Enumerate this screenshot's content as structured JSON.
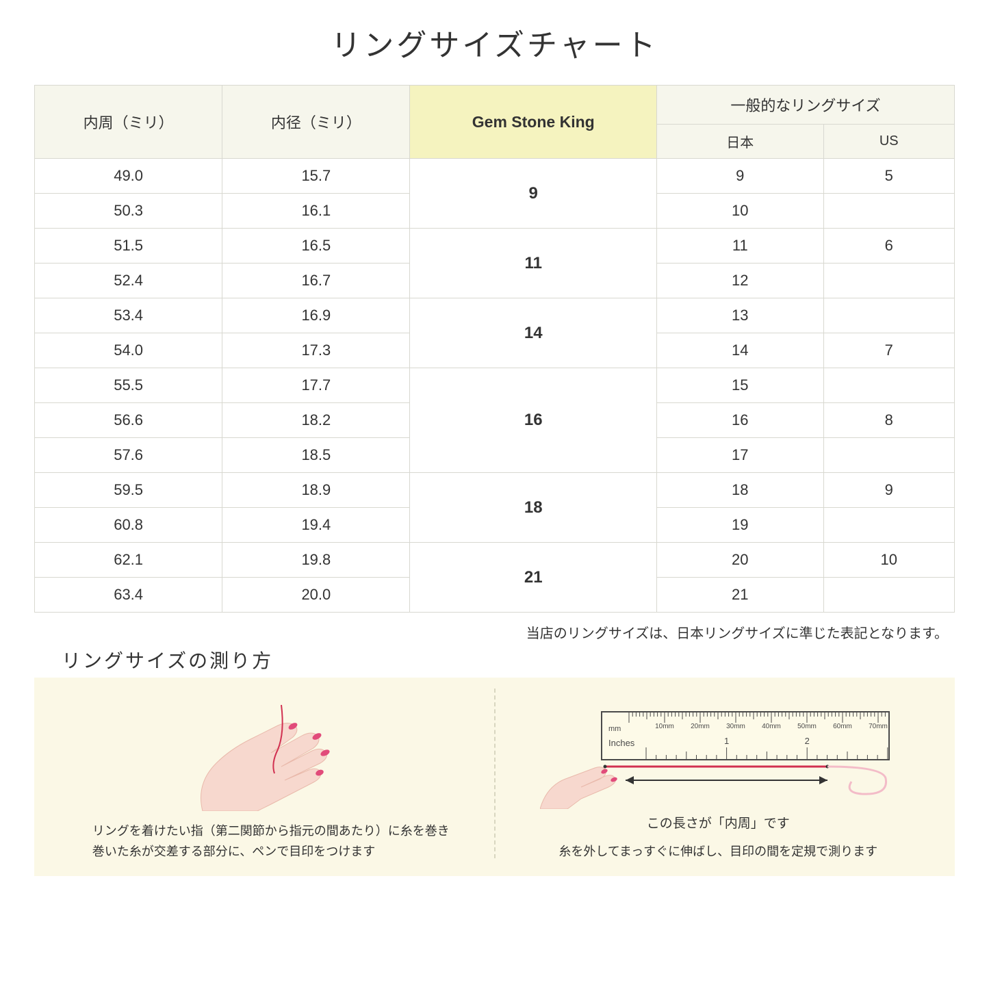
{
  "title": "リングサイズチャート",
  "table": {
    "header": {
      "circumference": "内周（ミリ）",
      "diameter": "内径（ミリ）",
      "gsk": "Gem Stone King",
      "general": "一般的なリングサイズ",
      "jp": "日本",
      "us": "US"
    },
    "groups": [
      {
        "gsk": "9",
        "rows": [
          {
            "c": "49.0",
            "d": "15.7",
            "jp": "9",
            "us": "5"
          },
          {
            "c": "50.3",
            "d": "16.1",
            "jp": "10",
            "us": ""
          }
        ]
      },
      {
        "gsk": "11",
        "rows": [
          {
            "c": "51.5",
            "d": "16.5",
            "jp": "11",
            "us": "6"
          },
          {
            "c": "52.4",
            "d": "16.7",
            "jp": "12",
            "us": ""
          }
        ]
      },
      {
        "gsk": "14",
        "rows": [
          {
            "c": "53.4",
            "d": "16.9",
            "jp": "13",
            "us": ""
          },
          {
            "c": "54.0",
            "d": "17.3",
            "jp": "14",
            "us": "7"
          }
        ]
      },
      {
        "gsk": "16",
        "rows": [
          {
            "c": "55.5",
            "d": "17.7",
            "jp": "15",
            "us": ""
          },
          {
            "c": "56.6",
            "d": "18.2",
            "jp": "16",
            "us": "8"
          },
          {
            "c": "57.6",
            "d": "18.5",
            "jp": "17",
            "us": ""
          }
        ]
      },
      {
        "gsk": "18",
        "rows": [
          {
            "c": "59.5",
            "d": "18.9",
            "jp": "18",
            "us": "9"
          },
          {
            "c": "60.8",
            "d": "19.4",
            "jp": "19",
            "us": ""
          }
        ]
      },
      {
        "gsk": "21",
        "rows": [
          {
            "c": "62.1",
            "d": "19.8",
            "jp": "20",
            "us": "10"
          },
          {
            "c": "63.4",
            "d": "20.0",
            "jp": "21",
            "us": ""
          }
        ]
      }
    ],
    "colors": {
      "header_bg": "#f6f6ec",
      "highlight_bg": "#f5f3bf",
      "border": "#d8d8d0",
      "howto_bg": "#fbf8e6"
    }
  },
  "note": "当店のリングサイズは、日本リングサイズに準じた表記となります。",
  "howto": {
    "title": "リングサイズの測り方",
    "left_caption": "リングを着けたい指（第二関節から指元の間あたり）に糸を巻き\n巻いた糸が交差する部分に、ペンで目印をつけます",
    "right_caption": "糸を外してまっすぐに伸ばし、目印の間を定規で測ります",
    "measure_label": "この長さが「内周」です",
    "ruler": {
      "mm_label": "mm",
      "inches_label": "Inches",
      "mm_ticks": [
        "10mm",
        "20mm",
        "30mm",
        "40mm",
        "50mm",
        "60mm",
        "70mm"
      ],
      "inch_ticks": [
        "1",
        "2"
      ]
    },
    "colors": {
      "skin": "#f7d8ce",
      "skin_dark": "#e9b9ab",
      "nail": "#e14b7a",
      "thread": "#d13050",
      "ruler_bg": "#fdfae8",
      "ruler_border": "#4a4a4a",
      "arrow": "#333333"
    }
  }
}
